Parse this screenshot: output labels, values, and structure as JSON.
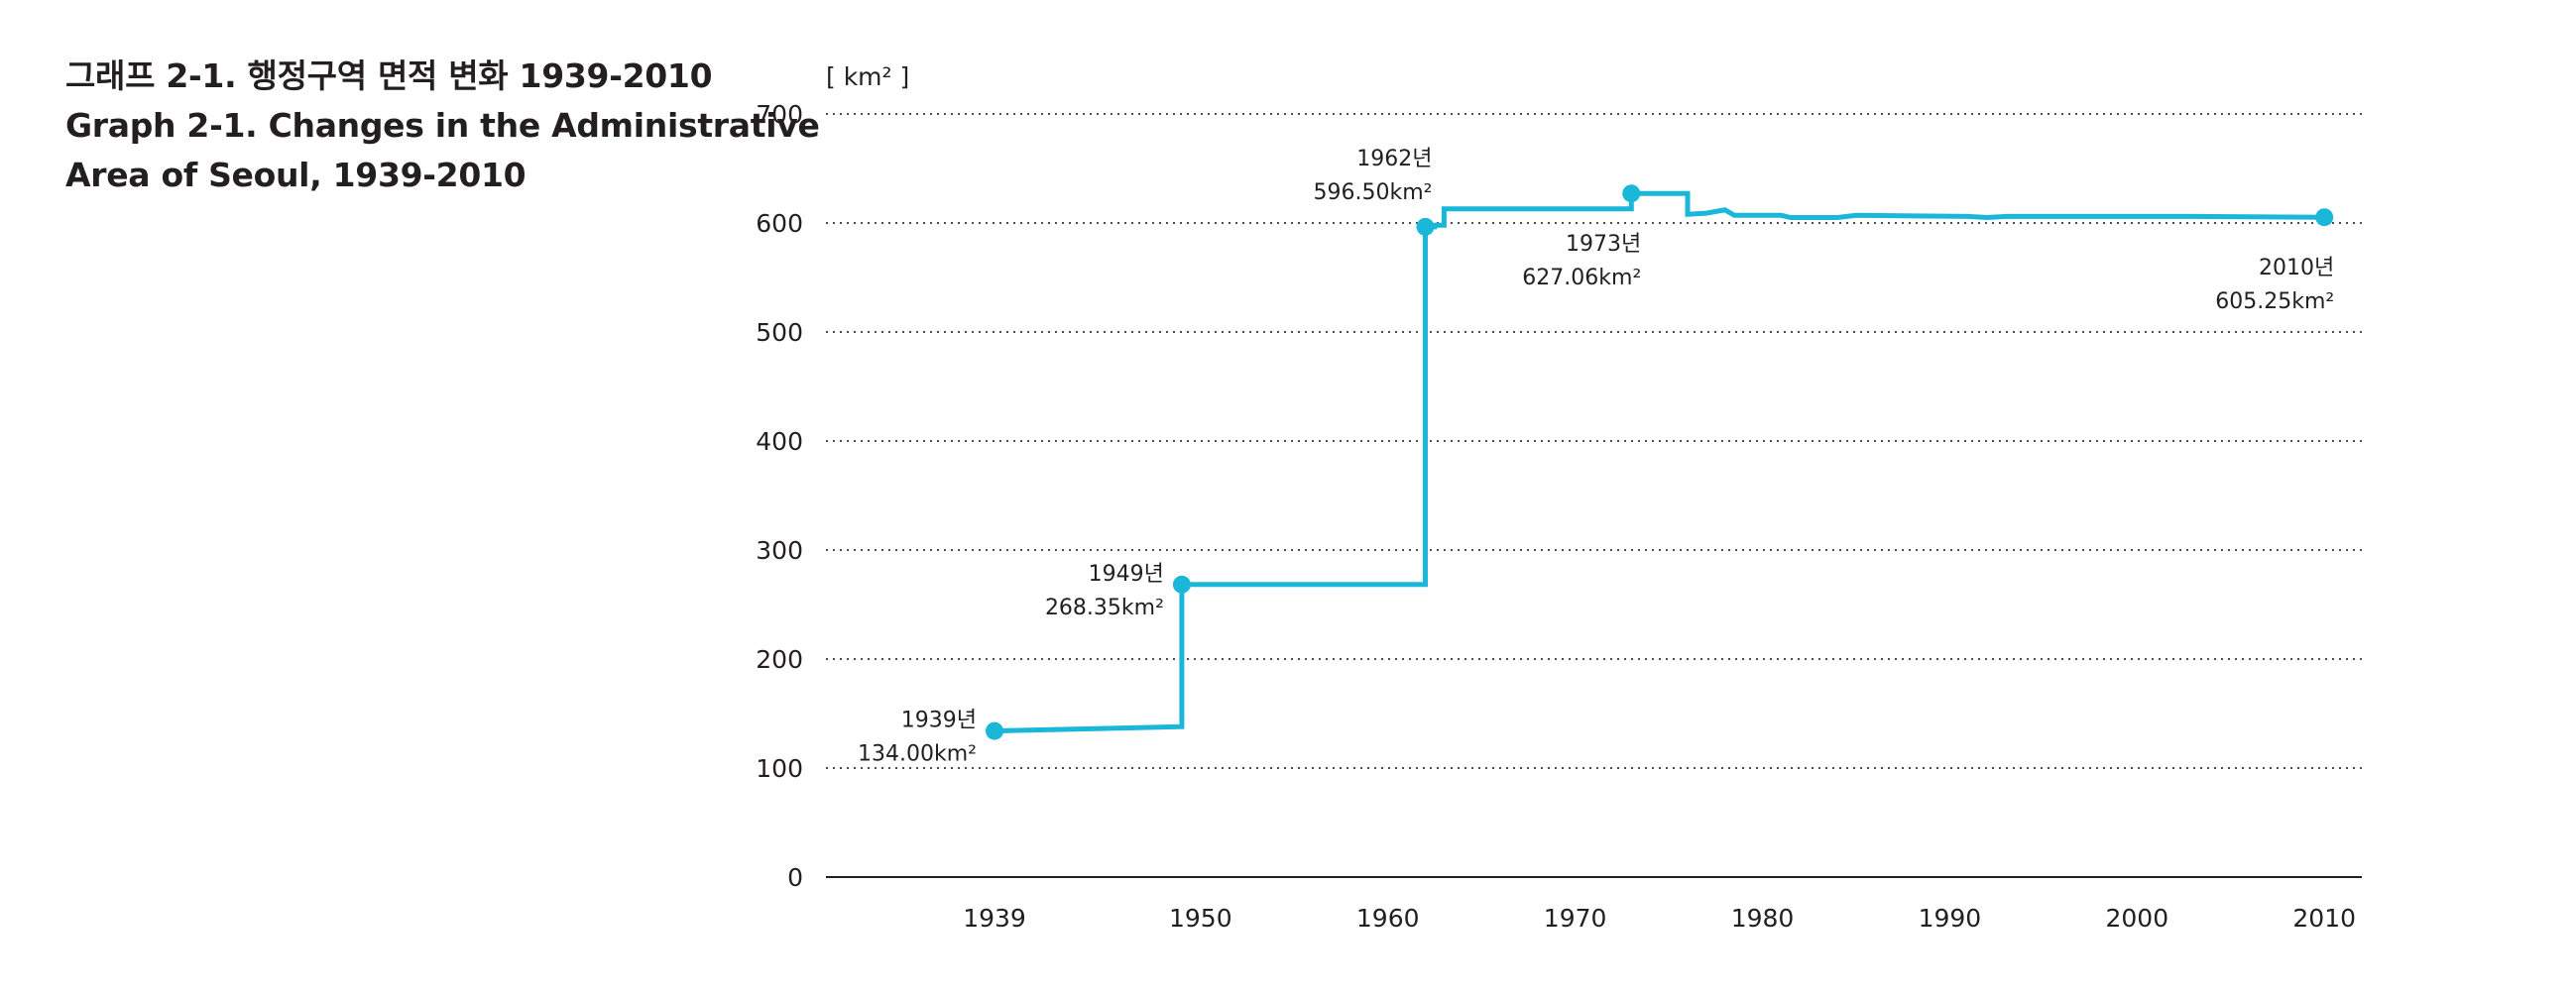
{
  "chart_data": {
    "type": "line",
    "title": "그래프 2-1. 행정구역 면적 변화 1939-2010",
    "subtitle_lines": [
      "Graph 2-1. Changes in the Administrative",
      "Area of Seoul, 1939-2010"
    ],
    "ylabel": "[ km² ]",
    "xlabel": "",
    "xlim": [
      1930,
      2012
    ],
    "ylim": [
      0,
      700
    ],
    "xticks": [
      1939,
      1950,
      1960,
      1970,
      1980,
      1990,
      2000,
      2010
    ],
    "yticks": [
      0,
      100,
      200,
      300,
      400,
      500,
      600,
      700
    ],
    "grid": "horizontal dotted",
    "line_color": "#1ab7d9",
    "series": [
      {
        "points": [
          [
            1939,
            134.0
          ],
          [
            1949,
            138.0
          ],
          [
            1949,
            268.35
          ],
          [
            1962,
            268.35
          ],
          [
            1962,
            596.5
          ],
          [
            1962.5,
            596.5
          ],
          [
            1962.5,
            598.0
          ],
          [
            1963,
            598.0
          ],
          [
            1963,
            613.0
          ],
          [
            1973,
            613.0
          ],
          [
            1973,
            627.06
          ],
          [
            1976,
            627.06
          ],
          [
            1976,
            608.0
          ],
          [
            1977,
            609.0
          ],
          [
            1978,
            612.0
          ],
          [
            1978.5,
            607.0
          ],
          [
            1981,
            607.0
          ],
          [
            1981.5,
            605.0
          ],
          [
            1984,
            605.0
          ],
          [
            1985,
            607.0
          ],
          [
            1991,
            606.0
          ],
          [
            1992,
            605.0
          ],
          [
            1993,
            606.0
          ],
          [
            2003,
            606.0
          ],
          [
            2010,
            605.25
          ]
        ]
      }
    ],
    "markers": [
      {
        "x": 1939,
        "y": 134.0,
        "year": "1939년",
        "value": "134.00km²",
        "side": "left"
      },
      {
        "x": 1949,
        "y": 268.35,
        "year": "1949년",
        "value": "268.35km²",
        "side": "left"
      },
      {
        "x": 1962,
        "y": 596.5,
        "year": "1962년",
        "value": "596.50km²",
        "side": "above-left"
      },
      {
        "x": 1973,
        "y": 627.06,
        "year": "1973년",
        "value": "627.06km²",
        "side": "below"
      },
      {
        "x": 2010,
        "y": 605.25,
        "year": "2010년",
        "value": "605.25km²",
        "side": "below"
      }
    ]
  }
}
